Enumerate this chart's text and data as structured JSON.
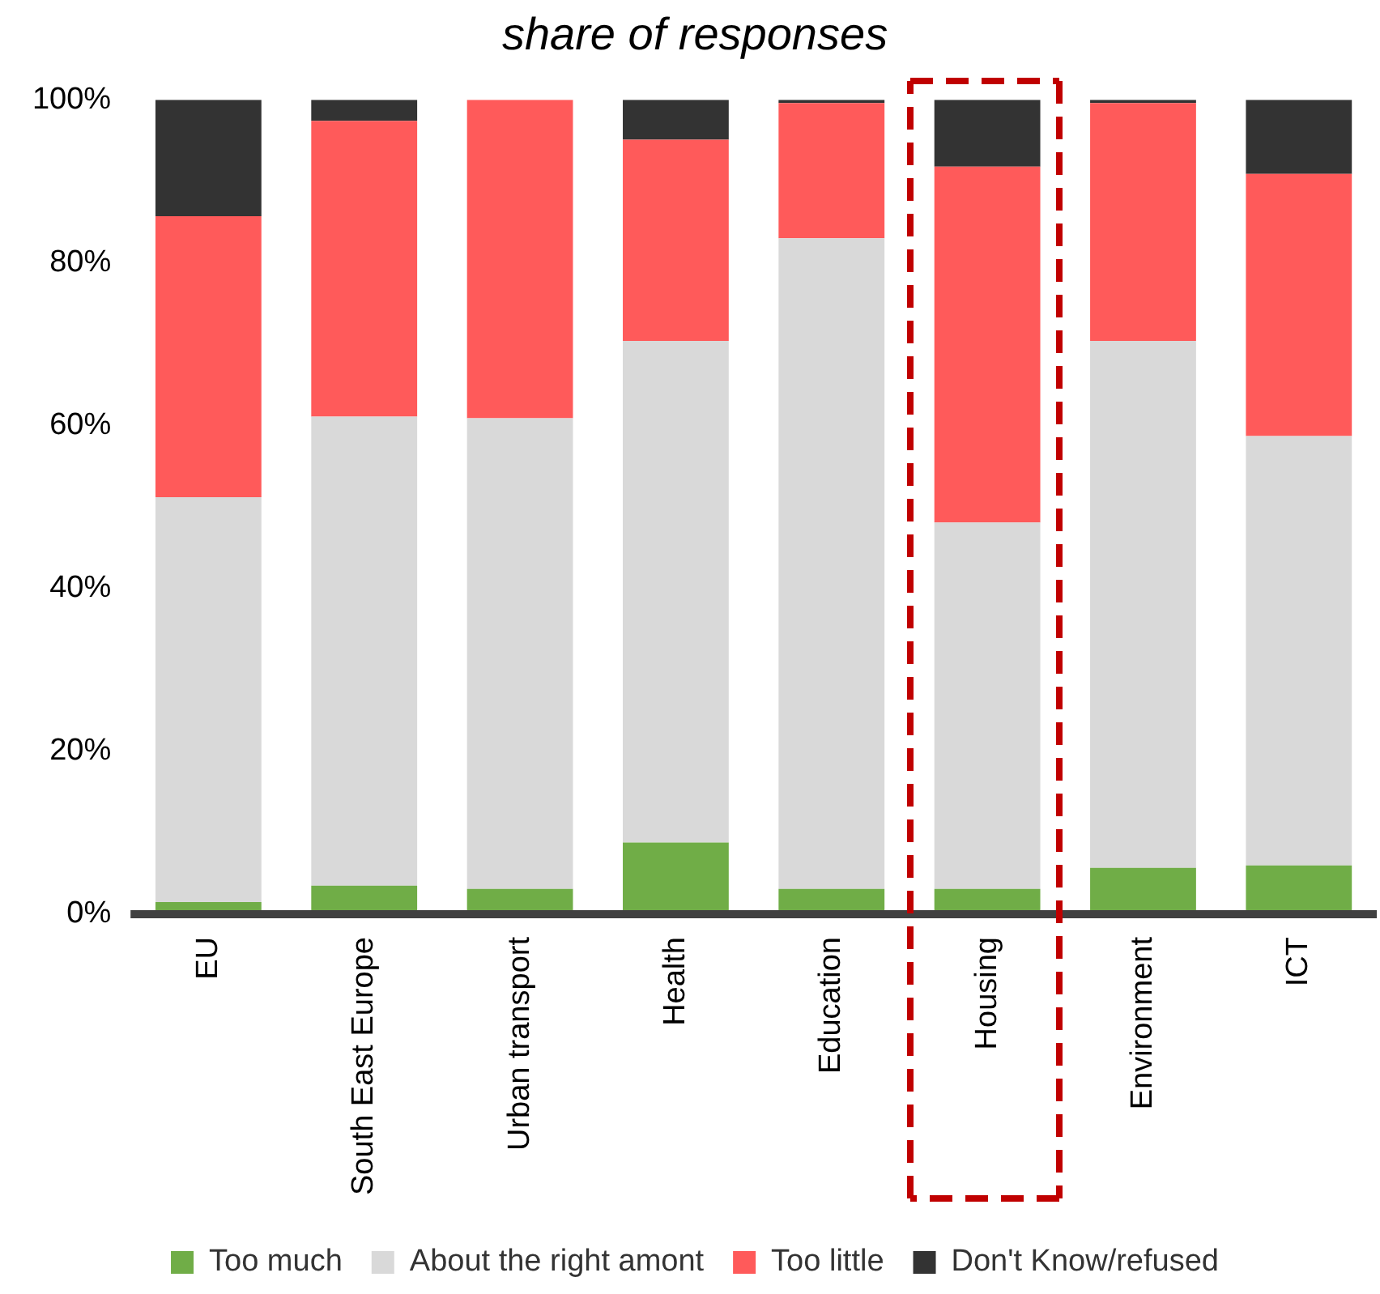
{
  "chart_data": {
    "type": "bar",
    "title": "share of responses",
    "stacked": true,
    "categories": [
      "EU",
      "South East Europe",
      "Urban transport",
      "Health",
      "Education",
      "Housing",
      "Environment",
      "ICT"
    ],
    "series": [
      {
        "name": "Too much",
        "color": "#70ad47",
        "values": [
          1.5,
          3.5,
          3.1,
          8.8,
          3.1,
          3.1,
          5.7,
          6.0
        ]
      },
      {
        "name": "About the right amont",
        "color": "#d9d9d9",
        "values": [
          49.7,
          57.6,
          57.8,
          61.6,
          79.9,
          45.0,
          64.7,
          52.7
        ]
      },
      {
        "name": "Too little",
        "color": "#ff5a5a",
        "values": [
          34.5,
          36.3,
          39.1,
          24.7,
          16.6,
          43.7,
          29.2,
          32.2
        ]
      },
      {
        "name": "Don't Know/refused",
        "color": "#333333",
        "values": [
          14.3,
          2.6,
          0,
          4.9,
          0.4,
          8.2,
          0.4,
          9.1
        ]
      }
    ],
    "ylim": [
      0,
      100
    ],
    "yticks": [
      {
        "value": 0,
        "label": "0%"
      },
      {
        "value": 20,
        "label": "20%"
      },
      {
        "value": 40,
        "label": "40%"
      },
      {
        "value": 60,
        "label": "60%"
      },
      {
        "value": 80,
        "label": "80%"
      },
      {
        "value": 100,
        "label": "100%"
      }
    ],
    "grid": false,
    "legend": "bottom"
  }
}
